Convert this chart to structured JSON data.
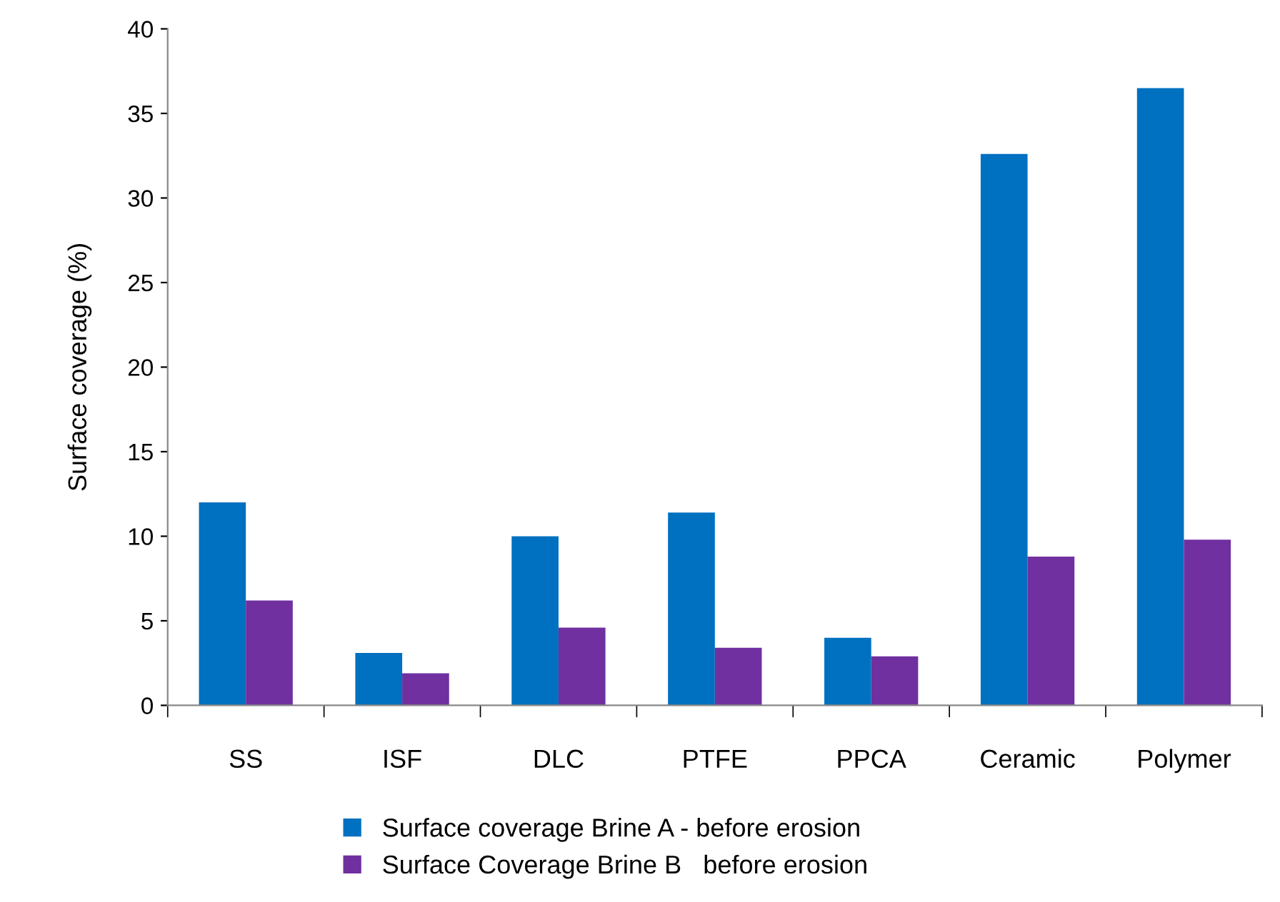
{
  "chart_data": {
    "type": "bar",
    "ylabel": "Surface coverage (%)",
    "categories": [
      "SS",
      "ISF",
      "DLC",
      "PTFE",
      "PPCA",
      "Ceramic",
      "Polymer"
    ],
    "series": [
      {
        "name": "Surface coverage Brine A - before erosion",
        "color": "#0070c0",
        "values": [
          12.0,
          3.1,
          10.0,
          11.4,
          4.0,
          32.6,
          36.5
        ]
      },
      {
        "name": "Surface Coverage Brine B   before erosion",
        "color": "#7030a0",
        "values": [
          6.2,
          1.9,
          4.6,
          3.4,
          2.9,
          8.8,
          9.8
        ]
      }
    ],
    "ylim": [
      0,
      40
    ],
    "yticks": [
      0,
      5,
      10,
      15,
      20,
      25,
      30,
      35,
      40
    ],
    "grid": false,
    "legend": "bottom"
  }
}
